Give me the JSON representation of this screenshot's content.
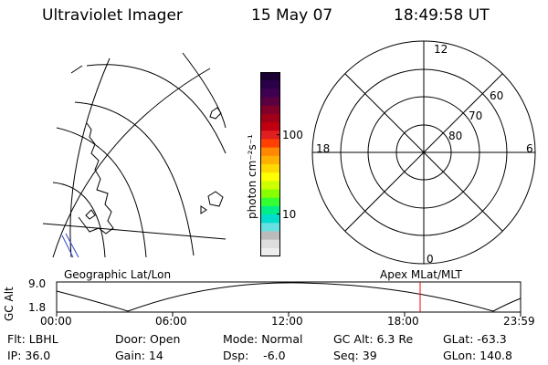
{
  "header": {
    "instrument": "Ultraviolet Imager",
    "date": "15 May 07",
    "time": "18:49:58 UT"
  },
  "colorbar": {
    "unit_label": "photon cm⁻²s⁻¹",
    "ticks": [
      "100",
      "10"
    ],
    "colors_top_to_bottom": [
      "#1a0033",
      "#2a0048",
      "#400050",
      "#5a0040",
      "#80002a",
      "#a00018",
      "#c00010",
      "#e02020",
      "#ff4000",
      "#ff8800",
      "#ffb000",
      "#ffd800",
      "#ffff00",
      "#ccff00",
      "#88ff00",
      "#33ff33",
      "#00ee88",
      "#00ddcc",
      "#66e0e0",
      "#bbbbbb",
      "#dddddd",
      "#eeeeee"
    ]
  },
  "left_map": {
    "label": "Geographic Lat/Lon"
  },
  "polar_plot": {
    "label": "Apex MLat/MLT",
    "mlt_labels": [
      "12",
      "18",
      "6",
      "0"
    ],
    "lat_labels": [
      "60",
      "70",
      "80"
    ]
  },
  "altitude_plot": {
    "ylabel": "GC Alt",
    "yticks": [
      "9.0",
      "1.8"
    ],
    "xticks": [
      "00:00",
      "06:00",
      "12:00",
      "18:00",
      "23:59"
    ],
    "marker_time": "18:49:58",
    "marker_color": "#ff0000"
  },
  "info": {
    "flt": "Flt: LBHL",
    "ip": "IP: 36.0",
    "door": "Door: Open",
    "gain": "Gain: 14",
    "mode": "Mode: Normal",
    "dsp": "Dsp:    -6.0",
    "gcalt": "GC Alt: 6.3 Re",
    "seq": "Seq: 39",
    "glat": "GLat: -63.3",
    "glon": "GLon: 140.8"
  }
}
